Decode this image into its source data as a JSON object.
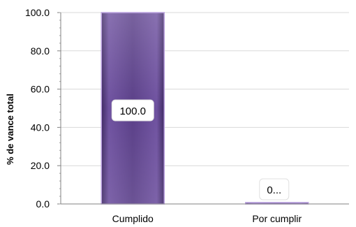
{
  "chart_data": {
    "type": "bar",
    "title": "",
    "xlabel": "",
    "ylabel": "% de vance total",
    "categories": [
      "Cumplido",
      "Por cumplir"
    ],
    "values": [
      100.0,
      0.4
    ],
    "data_labels": [
      "100.0",
      "0..."
    ],
    "ylim": [
      0,
      100
    ],
    "yticks": [
      "0.0",
      "20.0",
      "40.0",
      "60.0",
      "80.0",
      "100.0"
    ],
    "grid": true,
    "legend": "none",
    "bar_color": "#5e3f8c",
    "bar_highlight": "#8a6bb8",
    "bar_edge": "#b59bdd"
  }
}
